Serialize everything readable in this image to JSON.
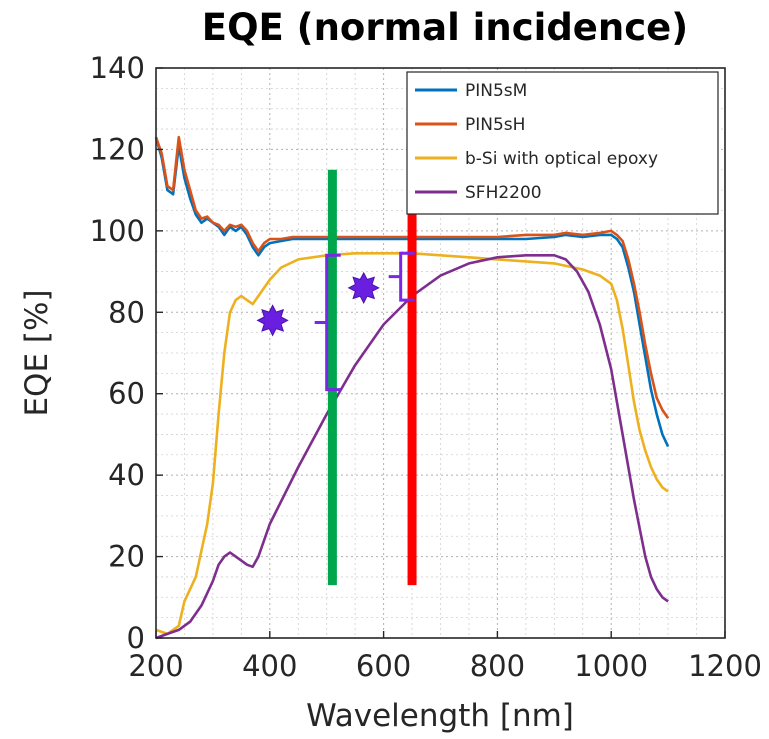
{
  "chart_data": {
    "type": "line",
    "title": "EQE (normal incidence)",
    "xlabel": "Wavelength [nm]",
    "ylabel": "EQE [%]",
    "xlim": [
      200,
      1200
    ],
    "ylim": [
      0,
      140
    ],
    "xticks": [
      "200",
      "400",
      "600",
      "800",
      "1000",
      "1200"
    ],
    "yticks": [
      "0",
      "20",
      "40",
      "60",
      "80",
      "100",
      "120",
      "140"
    ],
    "grid": "major and minor, dotted",
    "legend_position": "top-right",
    "series": [
      {
        "name": "PIN5sM",
        "color": "#0072bd",
        "x": [
          200,
          210,
          220,
          230,
          240,
          250,
          260,
          270,
          280,
          290,
          300,
          310,
          320,
          330,
          340,
          350,
          360,
          370,
          380,
          390,
          400,
          420,
          440,
          460,
          480,
          500,
          550,
          600,
          650,
          700,
          750,
          800,
          850,
          900,
          920,
          950,
          980,
          1000,
          1010,
          1020,
          1030,
          1040,
          1050,
          1060,
          1070,
          1080,
          1090,
          1100
        ],
        "y": [
          123,
          118,
          110,
          109,
          121,
          113,
          108,
          104,
          102,
          103,
          102,
          101,
          99,
          101,
          100,
          101,
          99,
          96,
          94,
          96,
          97,
          97.5,
          98,
          98,
          98,
          98,
          98,
          98,
          98,
          98,
          98,
          98,
          98,
          98.5,
          99,
          98.5,
          99,
          99,
          98,
          96,
          91,
          85,
          77,
          69,
          61,
          55,
          50,
          47
        ]
      },
      {
        "name": "PIN5sH",
        "color": "#d95319",
        "x": [
          200,
          210,
          220,
          230,
          240,
          250,
          260,
          270,
          280,
          290,
          300,
          310,
          320,
          330,
          340,
          350,
          360,
          370,
          380,
          390,
          400,
          420,
          440,
          460,
          480,
          500,
          550,
          600,
          650,
          700,
          750,
          800,
          850,
          900,
          920,
          950,
          980,
          1000,
          1010,
          1020,
          1030,
          1040,
          1050,
          1060,
          1070,
          1080,
          1090,
          1100
        ],
        "y": [
          123,
          119,
          111,
          110,
          123,
          115,
          110,
          105,
          103,
          103.5,
          102,
          101.5,
          100,
          101.5,
          101,
          101.5,
          100,
          97,
          95,
          97,
          98,
          98,
          98.5,
          98.5,
          98.5,
          98.5,
          98.5,
          98.5,
          98.5,
          98.5,
          98.5,
          98.5,
          99,
          99,
          99.5,
          99,
          99.5,
          100,
          99,
          97.5,
          93,
          87,
          80,
          72,
          65,
          59,
          56,
          54
        ]
      },
      {
        "name": "b-Si with optical epoxy",
        "color": "#edb120",
        "x": [
          200,
          220,
          240,
          250,
          270,
          290,
          300,
          310,
          320,
          330,
          340,
          350,
          360,
          370,
          380,
          400,
          420,
          450,
          500,
          550,
          600,
          650,
          700,
          750,
          800,
          850,
          900,
          950,
          980,
          1000,
          1010,
          1020,
          1030,
          1040,
          1050,
          1060,
          1070,
          1080,
          1090,
          1100
        ],
        "y": [
          2,
          1,
          3,
          9,
          15,
          28,
          38,
          55,
          70,
          80,
          83,
          84,
          83,
          82,
          84,
          88,
          91,
          93,
          94,
          94.5,
          94.5,
          94.5,
          94,
          93.5,
          93,
          92.5,
          92,
          90.5,
          89,
          87,
          83,
          76,
          67,
          58,
          51,
          46,
          42,
          39,
          37,
          36
        ]
      },
      {
        "name": "SFH2200",
        "color": "#7e2f8e",
        "x": [
          200,
          220,
          240,
          260,
          280,
          300,
          310,
          320,
          330,
          340,
          350,
          360,
          370,
          380,
          400,
          450,
          500,
          550,
          600,
          650,
          700,
          750,
          800,
          850,
          900,
          920,
          940,
          960,
          980,
          1000,
          1010,
          1020,
          1030,
          1040,
          1050,
          1060,
          1070,
          1080,
          1090,
          1100
        ],
        "y": [
          0,
          1,
          2,
          4,
          8,
          14,
          18,
          20,
          21,
          20,
          19,
          18,
          17.5,
          20,
          28,
          42,
          55,
          67,
          77,
          84,
          89,
          92,
          93.5,
          94,
          94,
          93,
          90,
          85,
          77,
          66,
          58,
          50,
          42,
          34,
          27,
          20,
          15,
          12,
          10,
          9
        ]
      }
    ],
    "annotations": {
      "vertical_lines": [
        {
          "x": 510,
          "ymin": 13,
          "ymax": 115,
          "color": "#00a64c"
        },
        {
          "x": 650,
          "ymin": 13,
          "ymax": 114,
          "color": "#ff0000"
        }
      ],
      "brackets": [
        {
          "x": 500,
          "ymin": 61,
          "ymax": 94,
          "color": "#7b27e6"
        },
        {
          "x": 630,
          "ymin": 83,
          "ymax": 94.5,
          "color": "#7b27e6"
        }
      ],
      "stars": [
        {
          "x": 405,
          "y": 78,
          "color": "#6a1fe0"
        },
        {
          "x": 565,
          "y": 86,
          "color": "#6a1fe0"
        }
      ]
    }
  }
}
